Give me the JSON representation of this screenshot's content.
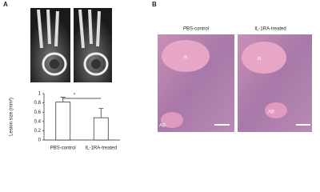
{
  "panels": {
    "A": {
      "label": "A"
    },
    "B": {
      "label": "B",
      "images": [
        {
          "title": "PBS-control",
          "labels": [
            "R",
            "AB"
          ]
        },
        {
          "title": "IL-1RA-treated",
          "labels": [
            "R",
            "AB"
          ]
        }
      ]
    }
  },
  "chart_data": {
    "type": "bar",
    "ylabel": "Lesion size (mm²)",
    "categories": [
      "PBS-control",
      "IL-1RA-treated"
    ],
    "values": [
      0.82,
      0.48
    ],
    "errors": [
      0.1,
      0.2
    ],
    "color": "#ffffff",
    "ylim": [
      0,
      1
    ],
    "yticks": [
      0,
      0.2,
      0.4,
      0.6,
      0.8,
      1
    ],
    "annotation": "*"
  }
}
